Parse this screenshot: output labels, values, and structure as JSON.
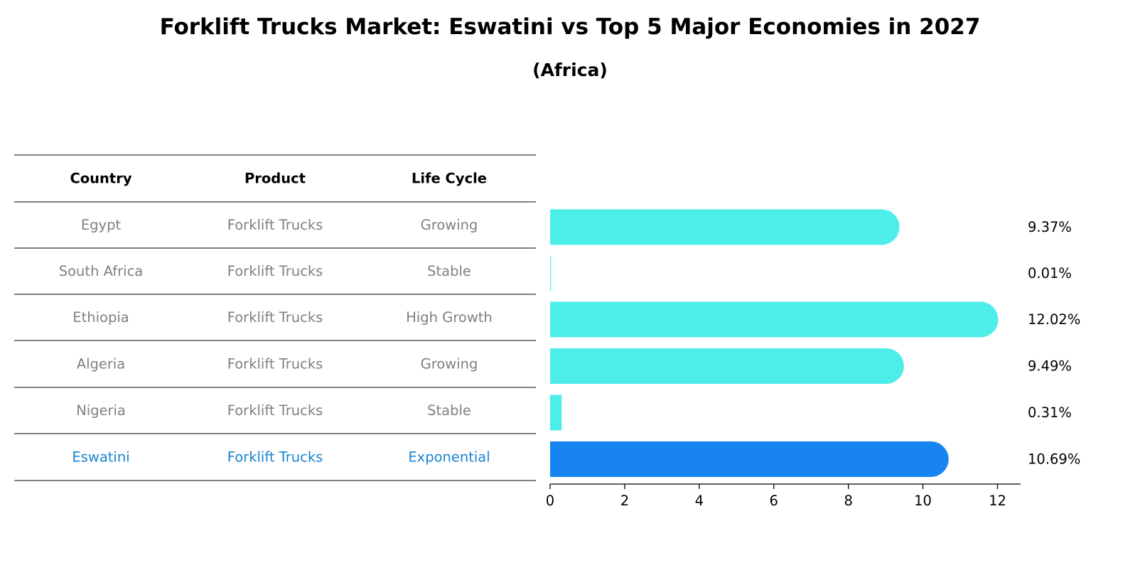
{
  "title": "Forklift Trucks Market: Eswatini vs Top 5 Major Economies in 2027",
  "subtitle": "(Africa)",
  "table": {
    "headers": [
      "Country",
      "Product",
      "Life Cycle"
    ],
    "rows": [
      {
        "country": "Egypt",
        "product": "Forklift Trucks",
        "life_cycle": "Growing",
        "highlight": false
      },
      {
        "country": "South Africa",
        "product": "Forklift Trucks",
        "life_cycle": "Stable",
        "highlight": false
      },
      {
        "country": "Ethiopia",
        "product": "Forklift Trucks",
        "life_cycle": "High Growth",
        "highlight": false
      },
      {
        "country": "Algeria",
        "product": "Forklift Trucks",
        "life_cycle": "Growing",
        "highlight": false
      },
      {
        "country": "Nigeria",
        "product": "Forklift Trucks",
        "life_cycle": "Stable",
        "highlight": false
      },
      {
        "country": "Eswatini",
        "product": "Forklift Trucks",
        "life_cycle": "Exponential",
        "highlight": true
      }
    ]
  },
  "chart_data": {
    "type": "bar",
    "orientation": "horizontal",
    "categories": [
      "Egypt",
      "South Africa",
      "Ethiopia",
      "Algeria",
      "Nigeria",
      "Eswatini"
    ],
    "values": [
      9.37,
      0.01,
      12.02,
      9.49,
      0.31,
      10.69
    ],
    "value_labels": [
      "9.37%",
      "0.01%",
      "12.02%",
      "9.49%",
      "0.31%",
      "10.69%"
    ],
    "xlim": [
      0,
      12.62
    ],
    "xticks": [
      0,
      2,
      4,
      6,
      8,
      10,
      12
    ],
    "grid": false,
    "legend": false
  },
  "colors": {
    "bar": "#4DEEEA",
    "highlight_bar": "#1884F0",
    "highlight_text": "#1884D0",
    "muted_text": "#808080",
    "rule": "#000000"
  }
}
